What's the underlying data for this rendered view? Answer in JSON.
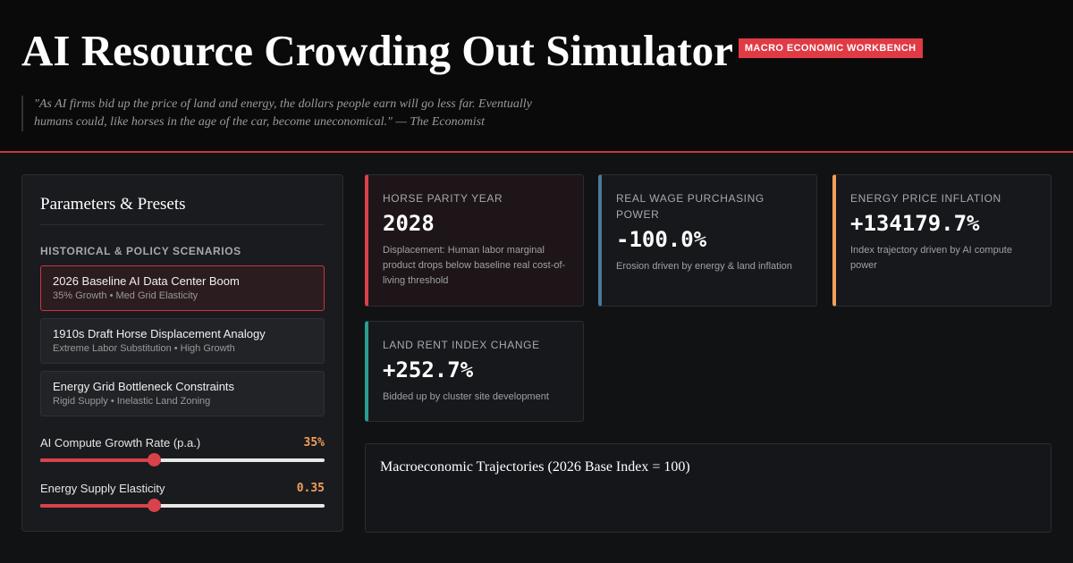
{
  "header": {
    "title": "AI Resource Crowding Out Simulator",
    "badge": "MACRO ECONOMIC WORKBENCH",
    "quote_line1": "\"As AI firms bid up the price of land and energy, the dollars people earn will go less far. Eventually",
    "quote_line2": "humans could, like horses in the age of the car, become uneconomical.\" — The Economist"
  },
  "panel": {
    "title": "Parameters & Presets",
    "section": "HISTORICAL & POLICY SCENARIOS",
    "presets": [
      {
        "name": "2026 Baseline AI Data Center Boom",
        "detail": "35% Growth • Med Grid Elasticity"
      },
      {
        "name": "1910s Draft Horse Displacement Analogy",
        "detail": "Extreme Labor Substitution • High Growth"
      },
      {
        "name": "Energy Grid Bottleneck Constraints",
        "detail": "Rigid Supply • Inelastic Land Zoning"
      }
    ],
    "sliders": [
      {
        "label": "AI Compute Growth Rate (p.a.)",
        "value": "35%"
      },
      {
        "label": "Energy Supply Elasticity",
        "value": "0.35"
      }
    ]
  },
  "cards": [
    {
      "label": "HORSE PARITY YEAR",
      "value": "2028",
      "note": "Displacement: Human labor marginal product drops below baseline real cost-of-living threshold"
    },
    {
      "label": "REAL WAGE PURCHASING POWER",
      "value": "-100.0%",
      "note": "Erosion driven by energy & land inflation"
    },
    {
      "label": "ENERGY PRICE INFLATION",
      "value": "+134179.7%",
      "note": "Index trajectory driven by AI compute power"
    },
    {
      "label": "LAND RENT INDEX CHANGE",
      "value": "+252.7%",
      "note": "Bidded up by cluster site development"
    }
  ],
  "chart": {
    "title": "Macroeconomic Trajectories (2026 Base Index = 100)"
  }
}
